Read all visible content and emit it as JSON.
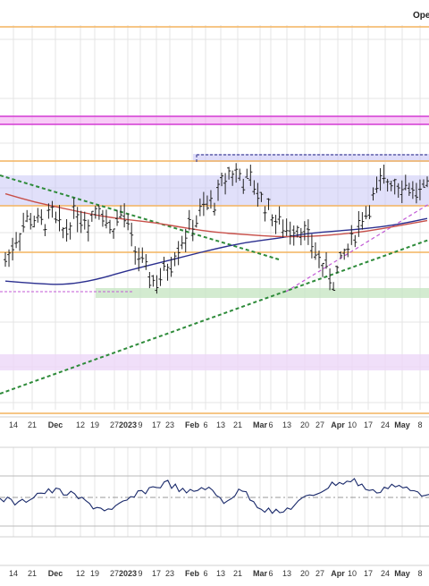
{
  "header": {
    "label": "Ope"
  },
  "colors": {
    "background": "#ffffff",
    "grid": "#e4e4e4",
    "orange_level": "#f4b35e",
    "magenta_band": "#f2a2f0",
    "magenta_line": "#d33ad3",
    "purple_zone": "#c9c6f6",
    "lavender_zone": "#ecd7f7",
    "green_zone": "#c8e6c4",
    "green_trend": "#2e8b3a",
    "violet_trend": "#c25ad6",
    "ma_blue": "#2b2f8f",
    "ma_red": "#c8504a",
    "price_bar": "#222222",
    "resistance_dash": "#4a4d9a",
    "rsi_line": "#1a2a6b",
    "pane_border": "#d0d0d0"
  },
  "chart_data": {
    "type": "line",
    "title": "",
    "xlabel": "",
    "ylabel": "",
    "grid": true,
    "x_tick_labels": [
      "14",
      "21",
      "Dec",
      "12",
      "19",
      "27",
      "2023",
      "9",
      "17",
      "23",
      "Feb",
      "6",
      "13",
      "21",
      "Mar",
      "6",
      "13",
      "20",
      "27",
      "Apr",
      "10",
      "17",
      "24",
      "May",
      "8"
    ],
    "series": [
      {
        "style": "ohlc-bars",
        "close_profile": [
          0.3,
          0.48,
          0.62,
          0.56,
          0.63,
          0.5,
          0.66,
          0.58,
          0.71,
          0.52,
          0.66,
          0.4,
          0.22,
          0.15,
          0.28,
          0.45,
          0.56,
          0.68,
          0.74,
          0.94,
          0.9,
          0.86,
          0.72,
          0.6,
          0.52,
          0.56,
          0.44,
          0.28,
          0.17,
          0.36,
          0.54,
          0.7,
          0.84,
          0.88,
          0.85,
          0.8,
          0.8
        ]
      },
      {
        "style": "line",
        "note": "blue moving average",
        "values": [
          0.22,
          0.2,
          0.19,
          0.23,
          0.3,
          0.36,
          0.42,
          0.48,
          0.53,
          0.56,
          0.6,
          0.62,
          0.64,
          0.67,
          0.72
        ]
      },
      {
        "style": "line",
        "note": "red moving average",
        "values": [
          0.82,
          0.74,
          0.68,
          0.62,
          0.58,
          0.55,
          0.5,
          0.46,
          0.44,
          0.42,
          0.42,
          0.44,
          0.47,
          0.52,
          0.57
        ]
      },
      {
        "style": "line",
        "note": "lower indicator oscillator",
        "values": [
          0.52,
          0.38,
          0.6,
          0.66,
          0.55,
          0.34,
          0.24,
          0.5,
          0.7,
          0.82,
          0.6,
          0.74,
          0.44,
          0.68,
          0.3,
          0.18,
          0.42,
          0.62,
          0.82,
          0.86,
          0.62,
          0.78,
          0.66,
          0.58
        ]
      }
    ]
  }
}
